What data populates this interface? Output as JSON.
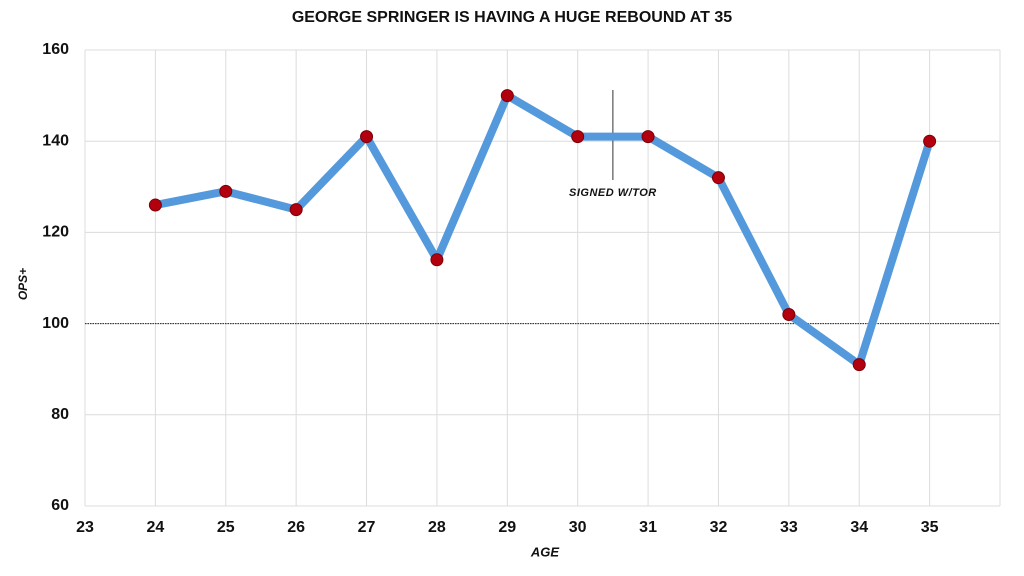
{
  "chart_data": {
    "type": "line",
    "title": "GEORGE SPRINGER IS HAVING A HUGE REBOUND AT 35",
    "x_label": "AGE",
    "y_label": "OPS+",
    "x": [
      24,
      25,
      26,
      27,
      28,
      29,
      30,
      31,
      32,
      33,
      34,
      35
    ],
    "values": [
      126,
      129,
      125,
      141,
      114,
      150,
      141,
      141,
      132,
      102,
      91,
      140
    ],
    "color": "#5499dc",
    "marker_color": "#b3000f",
    "xlim": [
      23,
      36
    ],
    "xticks": [
      23,
      24,
      25,
      26,
      27,
      28,
      29,
      30,
      31,
      32,
      33,
      34,
      35
    ],
    "ylim": [
      60,
      160
    ],
    "yticks": [
      60,
      80,
      100,
      120,
      140,
      160
    ],
    "grid": true,
    "reference_line": 100,
    "annotations": [
      {
        "text": "SIGNED W/TOR",
        "x": 30.5
      }
    ]
  }
}
